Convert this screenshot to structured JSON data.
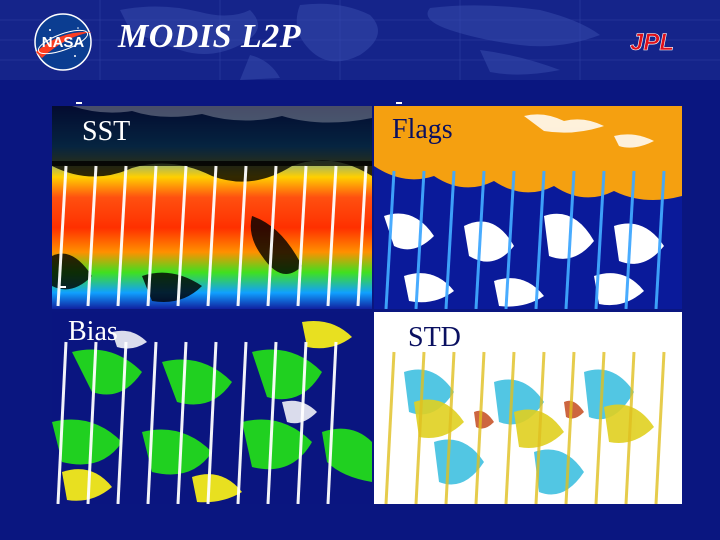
{
  "slide": {
    "title": "MODIS L2P",
    "logos": {
      "left": "nasa-logo",
      "right": "jpl-logo"
    },
    "logo_text": {
      "nasa": "NASA",
      "jpl": "JPL"
    },
    "colors": {
      "background": "#0a1680",
      "title": "#ffffff",
      "jpl": "#e0101a",
      "flags_orange": "#f5a010"
    }
  },
  "panels": [
    {
      "id": "sst",
      "label": "SST"
    },
    {
      "id": "flags",
      "label": "Flags"
    },
    {
      "id": "bias",
      "label": "Bias"
    },
    {
      "id": "std",
      "label": "STD"
    }
  ]
}
